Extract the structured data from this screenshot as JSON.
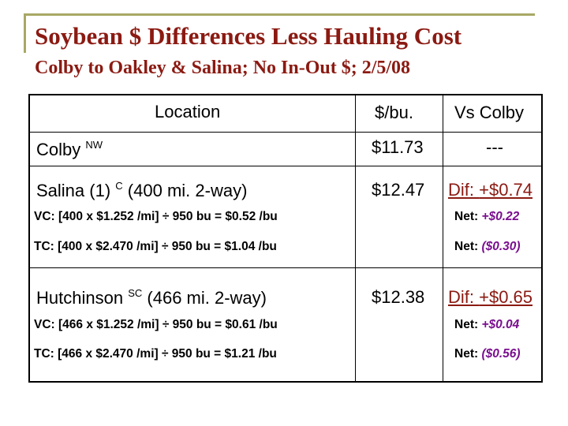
{
  "slide": {
    "title": "Soybean $ Differences Less Hauling Cost",
    "subtitle": "Colby to Oakley & Salina; No In-Out $; 2/5/08"
  },
  "table": {
    "headers": {
      "location": "Location",
      "price": "$/bu.",
      "vs": "Vs Colby"
    },
    "colby": {
      "name": "Colby",
      "tag": "NW",
      "price": "$11.73",
      "vs": "---"
    },
    "salina": {
      "name": "Salina (1)",
      "tag": "C",
      "dist": "(400 mi. 2-way)",
      "price": "$12.47",
      "dif_label": "Dif:",
      "dif_value": "+$0.74",
      "vc": "VC: [400 x $1.252 /mi] ÷ 950 bu = $0.52 /bu",
      "vc_net_label": "Net:",
      "vc_net_value": "+$0.22",
      "tc": "TC: [400 x $2.470 /mi] ÷ 950 bu = $1.04 /bu",
      "tc_net_label": "Net:",
      "tc_net_value": "($0.30)"
    },
    "hutchinson": {
      "name": "Hutchinson",
      "tag": "SC",
      "dist": "(466 mi. 2-way)",
      "price": "$12.38",
      "dif_label": "Dif:",
      "dif_value": "+$0.65",
      "vc": "VC: [466 x $1.252 /mi] ÷ 950 bu = $0.61 /bu",
      "vc_net_label": "Net:",
      "vc_net_value": "+$0.04",
      "tc": "TC: [466 x $2.470 /mi] ÷ 950 bu = $1.21 /bu",
      "tc_net_label": "Net:",
      "tc_net_value": "($0.56)"
    }
  },
  "colors": {
    "title": "#8b1a12",
    "net": "#7a0f8f",
    "frame": "#a8a866"
  }
}
